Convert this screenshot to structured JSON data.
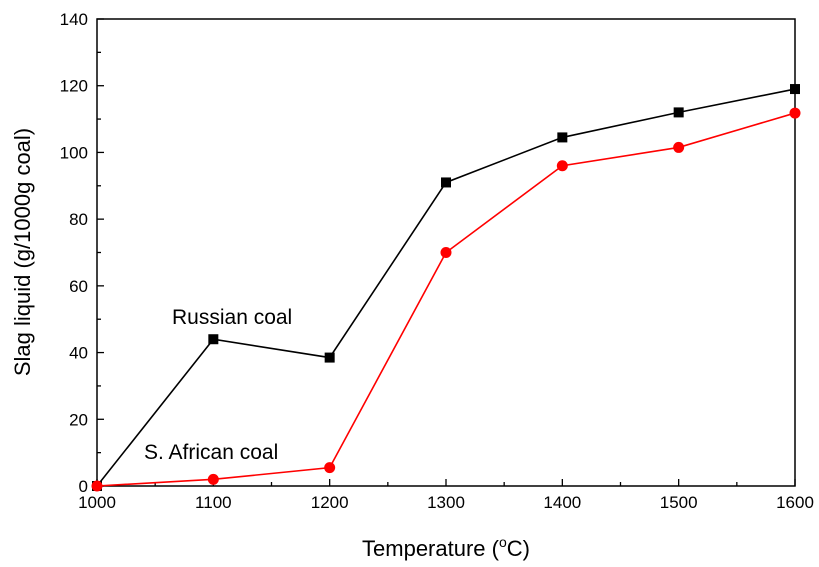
{
  "chart_data": {
    "type": "line",
    "title": "",
    "xlabel": "Temperature (",
    "xlabel_sup": "o",
    "xlabel_suffix": "C)",
    "ylabel": "Slag liquid (g/1000g coal)",
    "xlim": [
      1000,
      1600
    ],
    "ylim": [
      0,
      140
    ],
    "xticks": [
      1000,
      1100,
      1200,
      1300,
      1400,
      1500,
      1600
    ],
    "yticks": [
      0,
      20,
      40,
      60,
      80,
      100,
      120,
      140
    ],
    "grid": false,
    "x": [
      1000,
      1100,
      1200,
      1300,
      1400,
      1500,
      1600
    ],
    "series": [
      {
        "name": "Russian coal",
        "marker": "square",
        "color": "#000000",
        "values": [
          0,
          44,
          38.5,
          91,
          104.5,
          112,
          119
        ]
      },
      {
        "name": "S. African coal",
        "marker": "circle",
        "color": "#ff0000",
        "values": [
          0,
          2,
          5.5,
          70,
          96,
          101.5,
          111.8
        ]
      }
    ],
    "annotations": [
      {
        "text": "Russian coal",
        "series": 0
      },
      {
        "text": "S. African coal",
        "series": 1
      }
    ]
  }
}
